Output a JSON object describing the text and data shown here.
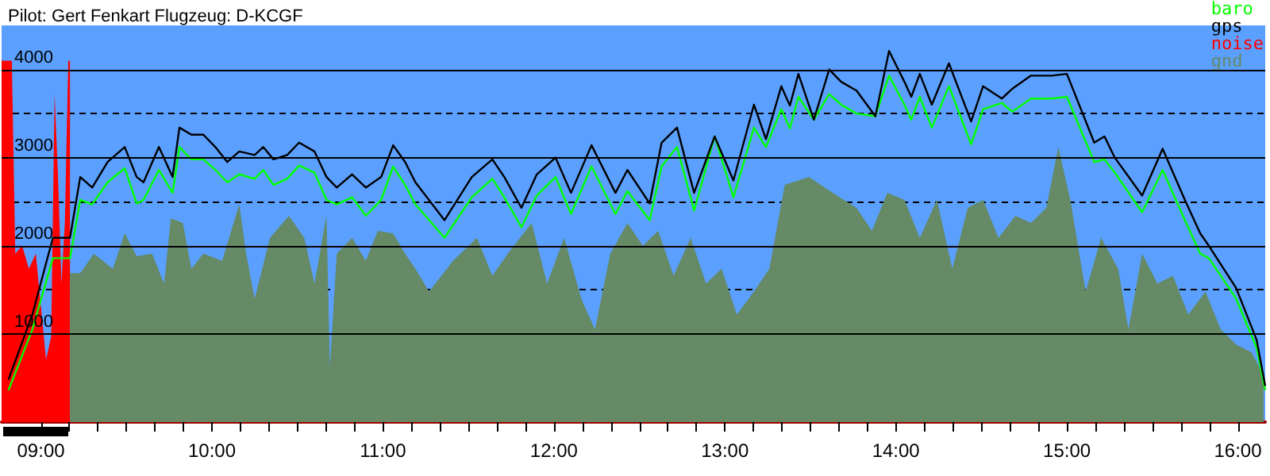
{
  "chart_data": {
    "type": "line",
    "title": "Pilot: Gert Fenkart Flugzeug: D-KCGF",
    "xlim": [
      8.77,
      16.16
    ],
    "ylim": [
      0,
      4500
    ],
    "xticks": [
      {
        "value": 9,
        "label": "09:00"
      },
      {
        "value": 9.1667,
        "label": null
      },
      {
        "value": 9.3333,
        "label": null
      },
      {
        "value": 9.5,
        "label": null
      },
      {
        "value": 9.6667,
        "label": null
      },
      {
        "value": 9.8333,
        "label": null
      },
      {
        "value": 10,
        "label": "10:00"
      },
      {
        "value": 10.1667,
        "label": null
      },
      {
        "value": 10.3333,
        "label": null
      },
      {
        "value": 10.5,
        "label": null
      },
      {
        "value": 10.6667,
        "label": null
      },
      {
        "value": 10.8333,
        "label": null
      },
      {
        "value": 11,
        "label": "11:00"
      },
      {
        "value": 11.1667,
        "label": null
      },
      {
        "value": 11.3333,
        "label": null
      },
      {
        "value": 11.5,
        "label": null
      },
      {
        "value": 11.6667,
        "label": null
      },
      {
        "value": 11.8333,
        "label": null
      },
      {
        "value": 12,
        "label": "12:00"
      },
      {
        "value": 12.1667,
        "label": null
      },
      {
        "value": 12.3333,
        "label": null
      },
      {
        "value": 12.5,
        "label": null
      },
      {
        "value": 12.6667,
        "label": null
      },
      {
        "value": 12.8333,
        "label": null
      },
      {
        "value": 13,
        "label": "13:00"
      },
      {
        "value": 13.1667,
        "label": null
      },
      {
        "value": 13.3333,
        "label": null
      },
      {
        "value": 13.5,
        "label": null
      },
      {
        "value": 13.6667,
        "label": null
      },
      {
        "value": 13.8333,
        "label": null
      },
      {
        "value": 14,
        "label": "14:00"
      },
      {
        "value": 14.1667,
        "label": null
      },
      {
        "value": 14.3333,
        "label": null
      },
      {
        "value": 14.5,
        "label": null
      },
      {
        "value": 14.6667,
        "label": null
      },
      {
        "value": 14.8333,
        "label": null
      },
      {
        "value": 15,
        "label": "15:00"
      },
      {
        "value": 15.1667,
        "label": null
      },
      {
        "value": 15.3333,
        "label": null
      },
      {
        "value": 15.5,
        "label": null
      },
      {
        "value": 15.6667,
        "label": null
      },
      {
        "value": 15.8333,
        "label": null
      },
      {
        "value": 16,
        "label": "16:00"
      }
    ],
    "yticks": [
      {
        "value": 500,
        "label": null
      },
      1000,
      {
        "value": 1500,
        "label": null
      },
      2000,
      {
        "value": 2500,
        "label": null
      },
      3000,
      {
        "value": 3500,
        "label": null
      },
      4000
    ],
    "grid": "y",
    "legend": "top right",
    "marker": "none",
    "line_style": "solid",
    "series": [
      {
        "name": "baro",
        "color": "#00ff00",
        "x": [
          8.81,
          8.95,
          9.07,
          9.17,
          9.23,
          9.3,
          9.39,
          9.49,
          9.56,
          9.6,
          9.69,
          9.77,
          9.81,
          9.88,
          9.95,
          10.02,
          10.09,
          10.16,
          10.25,
          10.3,
          10.36,
          10.44,
          10.51,
          10.6,
          10.67,
          10.73,
          10.82,
          10.9,
          10.99,
          11.06,
          11.13,
          11.19,
          11.36,
          11.52,
          11.64,
          11.71,
          11.81,
          11.9,
          12.01,
          12.1,
          12.22,
          12.36,
          12.43,
          12.56,
          12.63,
          12.72,
          12.82,
          12.94,
          13.05,
          13.17,
          13.24,
          13.33,
          13.38,
          13.43,
          13.52,
          13.61,
          13.68,
          13.77,
          13.88,
          13.96,
          14.05,
          14.09,
          14.14,
          14.21,
          14.31,
          14.44,
          14.51,
          14.62,
          14.68,
          14.79,
          14.91,
          15.0,
          15.16,
          15.22,
          15.28,
          15.44,
          15.56,
          15.69,
          15.78,
          15.83,
          15.99,
          16.11,
          16.16
        ],
        "values": [
          360,
          1050,
          1860,
          1860,
          2520,
          2470,
          2720,
          2880,
          2480,
          2520,
          2860,
          2600,
          3120,
          2980,
          2980,
          2860,
          2720,
          2810,
          2760,
          2860,
          2690,
          2760,
          2910,
          2830,
          2520,
          2470,
          2550,
          2340,
          2520,
          2900,
          2690,
          2470,
          2090,
          2550,
          2760,
          2550,
          2210,
          2570,
          2780,
          2360,
          2900,
          2360,
          2620,
          2290,
          2900,
          3120,
          2400,
          3240,
          2550,
          3340,
          3120,
          3550,
          3330,
          3690,
          3430,
          3720,
          3600,
          3500,
          3470,
          3930,
          3600,
          3430,
          3690,
          3340,
          3810,
          3150,
          3550,
          3620,
          3520,
          3670,
          3670,
          3690,
          2950,
          2980,
          2830,
          2380,
          2860,
          2290,
          1910,
          1860,
          1400,
          840,
          360
        ]
      },
      {
        "name": "gps",
        "color": "#000000",
        "x": [
          8.81,
          8.95,
          9.07,
          9.17,
          9.23,
          9.3,
          9.39,
          9.49,
          9.56,
          9.6,
          9.69,
          9.77,
          9.81,
          9.88,
          9.95,
          10.02,
          10.09,
          10.16,
          10.25,
          10.3,
          10.36,
          10.44,
          10.51,
          10.6,
          10.67,
          10.73,
          10.82,
          10.9,
          10.99,
          11.06,
          11.13,
          11.19,
          11.36,
          11.52,
          11.64,
          11.71,
          11.81,
          11.9,
          12.01,
          12.1,
          12.22,
          12.36,
          12.43,
          12.56,
          12.63,
          12.72,
          12.82,
          12.94,
          13.05,
          13.17,
          13.24,
          13.33,
          13.38,
          13.43,
          13.52,
          13.61,
          13.68,
          13.77,
          13.88,
          13.96,
          14.05,
          14.09,
          14.14,
          14.21,
          14.31,
          14.44,
          14.51,
          14.62,
          14.68,
          14.79,
          14.91,
          15.0,
          15.16,
          15.22,
          15.28,
          15.44,
          15.56,
          15.69,
          15.78,
          15.83,
          15.99,
          16.11,
          16.16
        ],
        "values": [
          480,
          1220,
          2090,
          2090,
          2780,
          2660,
          2950,
          3120,
          2780,
          2720,
          3120,
          2780,
          3340,
          3260,
          3260,
          3120,
          2950,
          3070,
          3030,
          3120,
          2980,
          3030,
          3170,
          3070,
          2780,
          2660,
          2810,
          2660,
          2780,
          3140,
          2950,
          2720,
          2290,
          2780,
          2980,
          2780,
          2430,
          2810,
          3000,
          2600,
          3140,
          2600,
          2860,
          2480,
          3170,
          3340,
          2600,
          3240,
          2740,
          3600,
          3210,
          3810,
          3590,
          3950,
          3430,
          4000,
          3860,
          3760,
          3470,
          4210,
          3860,
          3690,
          3950,
          3600,
          4070,
          3410,
          3810,
          3670,
          3780,
          3930,
          3930,
          3950,
          3170,
          3240,
          3000,
          2570,
          3100,
          2520,
          2140,
          2000,
          1520,
          930,
          410
        ]
      },
      {
        "name": "noise",
        "color": "#ff0000",
        "type": "area",
        "x": [
          8.77,
          8.8,
          8.83,
          8.85,
          8.89,
          8.93,
          8.97,
          9.0,
          9.03,
          9.06,
          9.08,
          9.1,
          9.12,
          9.14,
          9.16,
          9.17
        ],
        "values": [
          4100,
          4100,
          4100,
          1910,
          2000,
          1740,
          1910,
          1310,
          710,
          970,
          3720,
          2780,
          1570,
          2260,
          4100,
          4100
        ]
      },
      {
        "name": "gnd",
        "color": "#658a65",
        "type": "area",
        "x": [
          9.17,
          9.23,
          9.31,
          9.42,
          9.49,
          9.56,
          9.65,
          9.72,
          9.76,
          9.83,
          9.88,
          9.95,
          10.06,
          10.16,
          10.2,
          10.25,
          10.34,
          10.45,
          10.54,
          10.6,
          10.67,
          10.69,
          10.73,
          10.82,
          10.9,
          10.97,
          11.06,
          11.13,
          11.19,
          11.27,
          11.41,
          11.55,
          11.64,
          11.73,
          11.87,
          11.96,
          12.06,
          12.16,
          12.24,
          12.33,
          12.43,
          12.52,
          12.61,
          12.7,
          12.8,
          12.89,
          12.98,
          13.07,
          13.17,
          13.26,
          13.35,
          13.49,
          13.63,
          13.77,
          13.86,
          13.95,
          14.05,
          14.14,
          14.24,
          14.33,
          14.42,
          14.51,
          14.6,
          14.7,
          14.79,
          14.88,
          14.95,
          15.02,
          15.11,
          15.2,
          15.3,
          15.36,
          15.44,
          15.53,
          15.62,
          15.71,
          15.81,
          15.9,
          15.99,
          16.08,
          16.15
        ],
        "values": [
          1690,
          1690,
          1910,
          1740,
          2140,
          1880,
          1910,
          1570,
          2310,
          2260,
          1740,
          1910,
          1830,
          2470,
          1910,
          1400,
          2090,
          2340,
          2090,
          1570,
          2340,
          620,
          1910,
          2090,
          1830,
          2170,
          2140,
          1910,
          1740,
          1480,
          1830,
          2090,
          1660,
          1910,
          2260,
          1570,
          2090,
          1400,
          1050,
          1910,
          2260,
          2000,
          2170,
          1660,
          2090,
          1570,
          1740,
          1220,
          1480,
          1740,
          2690,
          2780,
          2600,
          2430,
          2170,
          2600,
          2520,
          2090,
          2520,
          1740,
          2430,
          2520,
          2090,
          2340,
          2260,
          2430,
          3120,
          2520,
          1480,
          2090,
          1740,
          1050,
          1910,
          1570,
          1660,
          1220,
          1480,
          1050,
          880,
          790,
          530
        ]
      }
    ]
  }
}
